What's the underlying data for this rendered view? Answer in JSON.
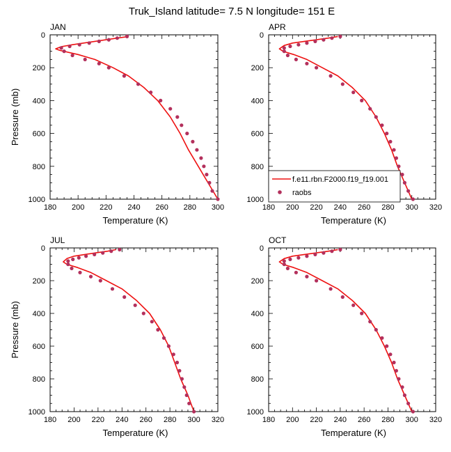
{
  "title": "Truk_Island  latitude= 7.5 N longitude= 151 E",
  "legend": {
    "model_label": "f.e11.rbn.F2000.f19_f19.001",
    "obs_label": "raobs",
    "placement": "lower-left of APR panel"
  },
  "colors": {
    "model_line": "#ee1111",
    "obs_marker": "#b3305c",
    "axes": "#000000"
  },
  "chart_data": [
    {
      "type": "line",
      "panel": "JAN",
      "label": "JAN",
      "xlabel": "Temperature (K)",
      "ylabel": "Pressure (mb)",
      "xlim": [
        180,
        300
      ],
      "ylim": [
        1000,
        0
      ],
      "xticks": [
        180,
        200,
        220,
        240,
        260,
        280,
        300
      ],
      "yticks": [
        0,
        200,
        400,
        600,
        800,
        1000
      ],
      "series": [
        {
          "name": "f.e11.rbn.F2000.f19_f19.001",
          "kind": "line",
          "points": [
            [
              236,
              10
            ],
            [
              228,
              20
            ],
            [
              220,
              30
            ],
            [
              212,
              40
            ],
            [
              204,
              50
            ],
            [
              196,
              60
            ],
            [
              188,
              72
            ],
            [
              184,
              85
            ],
            [
              187,
              95
            ],
            [
              200,
              120
            ],
            [
              212,
              150
            ],
            [
              225,
              200
            ],
            [
              236,
              250
            ],
            [
              247,
              320
            ],
            [
              257,
              400
            ],
            [
              266,
              500
            ],
            [
              273,
              600
            ],
            [
              279,
              700
            ],
            [
              286,
              800
            ],
            [
              293,
              900
            ],
            [
              300,
              1000
            ]
          ]
        },
        {
          "name": "raobs",
          "kind": "markers",
          "points": [
            [
              235,
              10
            ],
            [
              228,
              20
            ],
            [
              222,
              30
            ],
            [
              215,
              40
            ],
            [
              208,
              50
            ],
            [
              201,
              60
            ],
            [
              194,
              70
            ],
            [
              188,
              80
            ],
            [
              190,
              100
            ],
            [
              196,
              125
            ],
            [
              205,
              150
            ],
            [
              215,
              175
            ],
            [
              222,
              200
            ],
            [
              233,
              250
            ],
            [
              243,
              300
            ],
            [
              252,
              350
            ],
            [
              259,
              400
            ],
            [
              266,
              450
            ],
            [
              271,
              500
            ],
            [
              274,
              550
            ],
            [
              278,
              600
            ],
            [
              282,
              650
            ],
            [
              285,
              700
            ],
            [
              288,
              750
            ],
            [
              290,
              800
            ],
            [
              292,
              850
            ],
            [
              294,
              900
            ],
            [
              296,
              950
            ],
            [
              300,
              1000
            ]
          ]
        }
      ]
    },
    {
      "type": "line",
      "panel": "APR",
      "label": "APR",
      "xlabel": "Temperature (K)",
      "ylabel": "",
      "xlim": [
        180,
        320
      ],
      "ylim": [
        1000,
        0
      ],
      "xticks": [
        180,
        200,
        220,
        240,
        260,
        280,
        300,
        320
      ],
      "yticks": [
        0,
        200,
        400,
        600,
        800,
        1000
      ],
      "series": [
        {
          "name": "f.e11.rbn.F2000.f19_f19.001",
          "kind": "line",
          "points": [
            [
              238,
              10
            ],
            [
              230,
              20
            ],
            [
              220,
              30
            ],
            [
              210,
              40
            ],
            [
              200,
              50
            ],
            [
              193,
              65
            ],
            [
              189,
              85
            ],
            [
              192,
              100
            ],
            [
              201,
              120
            ],
            [
              212,
              150
            ],
            [
              225,
              200
            ],
            [
              238,
              250
            ],
            [
              250,
              320
            ],
            [
              261,
              400
            ],
            [
              270,
              500
            ],
            [
              277,
              600
            ],
            [
              283,
              700
            ],
            [
              288,
              800
            ],
            [
              294,
              900
            ],
            [
              300,
              1000
            ]
          ]
        },
        {
          "name": "raobs",
          "kind": "markers",
          "points": [
            [
              240,
              10
            ],
            [
              233,
              20
            ],
            [
              226,
              30
            ],
            [
              219,
              40
            ],
            [
              212,
              50
            ],
            [
              205,
              60
            ],
            [
              198,
              70
            ],
            [
              193,
              80
            ],
            [
              193,
              100
            ],
            [
              196,
              125
            ],
            [
              203,
              150
            ],
            [
              212,
              175
            ],
            [
              220,
              200
            ],
            [
              232,
              250
            ],
            [
              242,
              300
            ],
            [
              251,
              350
            ],
            [
              258,
              400
            ],
            [
              265,
              450
            ],
            [
              270,
              500
            ],
            [
              275,
              550
            ],
            [
              279,
              600
            ],
            [
              282,
              650
            ],
            [
              285,
              700
            ],
            [
              287,
              750
            ],
            [
              289,
              800
            ],
            [
              292,
              850
            ],
            [
              294,
              900
            ],
            [
              297,
              950
            ],
            [
              301,
              1000
            ]
          ]
        }
      ]
    },
    {
      "type": "line",
      "panel": "JUL",
      "label": "JUL",
      "xlabel": "Temperature (K)",
      "ylabel": "Pressure (mb)",
      "xlim": [
        180,
        320
      ],
      "ylim": [
        1000,
        0
      ],
      "xticks": [
        180,
        200,
        220,
        240,
        260,
        280,
        300,
        320
      ],
      "yticks": [
        0,
        200,
        400,
        600,
        800,
        1000
      ],
      "series": [
        {
          "name": "f.e11.rbn.F2000.f19_f19.001",
          "kind": "line",
          "points": [
            [
              235,
              10
            ],
            [
              228,
              20
            ],
            [
              218,
              30
            ],
            [
              209,
              40
            ],
            [
              200,
              50
            ],
            [
              194,
              65
            ],
            [
              191,
              85
            ],
            [
              194,
              100
            ],
            [
              203,
              120
            ],
            [
              214,
              150
            ],
            [
              227,
              200
            ],
            [
              240,
              250
            ],
            [
              252,
              320
            ],
            [
              263,
              400
            ],
            [
              272,
              500
            ],
            [
              279,
              600
            ],
            [
              284,
              700
            ],
            [
              289,
              800
            ],
            [
              295,
              900
            ],
            [
              300,
              1000
            ]
          ]
        },
        {
          "name": "raobs",
          "kind": "markers",
          "points": [
            [
              238,
              10
            ],
            [
              231,
              20
            ],
            [
              224,
              30
            ],
            [
              217,
              40
            ],
            [
              210,
              50
            ],
            [
              204,
              60
            ],
            [
              199,
              70
            ],
            [
              195,
              80
            ],
            [
              195,
              100
            ],
            [
              198,
              125
            ],
            [
              205,
              150
            ],
            [
              214,
              175
            ],
            [
              222,
              200
            ],
            [
              232,
              250
            ],
            [
              242,
              300
            ],
            [
              251,
              350
            ],
            [
              258,
              400
            ],
            [
              265,
              450
            ],
            [
              270,
              500
            ],
            [
              275,
              550
            ],
            [
              279,
              600
            ],
            [
              283,
              650
            ],
            [
              286,
              700
            ],
            [
              288,
              750
            ],
            [
              290,
              800
            ],
            [
              292,
              850
            ],
            [
              294,
              900
            ],
            [
              296,
              950
            ],
            [
              300,
              1000
            ]
          ]
        }
      ]
    },
    {
      "type": "line",
      "panel": "OCT",
      "label": "OCT",
      "xlabel": "Temperature (K)",
      "ylabel": "",
      "xlim": [
        180,
        320
      ],
      "ylim": [
        1000,
        0
      ],
      "xticks": [
        180,
        200,
        220,
        240,
        260,
        280,
        300,
        320
      ],
      "yticks": [
        0,
        200,
        400,
        600,
        800,
        1000
      ],
      "series": [
        {
          "name": "f.e11.rbn.F2000.f19_f19.001",
          "kind": "line",
          "points": [
            [
              238,
              10
            ],
            [
              230,
              20
            ],
            [
              220,
              30
            ],
            [
              210,
              40
            ],
            [
              200,
              50
            ],
            [
              193,
              65
            ],
            [
              189,
              85
            ],
            [
              192,
              100
            ],
            [
              201,
              120
            ],
            [
              212,
              150
            ],
            [
              225,
              200
            ],
            [
              238,
              250
            ],
            [
              250,
              320
            ],
            [
              261,
              400
            ],
            [
              270,
              500
            ],
            [
              277,
              600
            ],
            [
              283,
              700
            ],
            [
              288,
              800
            ],
            [
              294,
              900
            ],
            [
              300,
              1000
            ]
          ]
        },
        {
          "name": "raobs",
          "kind": "markers",
          "points": [
            [
              240,
              10
            ],
            [
              233,
              20
            ],
            [
              226,
              30
            ],
            [
              219,
              40
            ],
            [
              212,
              50
            ],
            [
              205,
              60
            ],
            [
              198,
              70
            ],
            [
              193,
              80
            ],
            [
              193,
              100
            ],
            [
              196,
              125
            ],
            [
              203,
              150
            ],
            [
              212,
              175
            ],
            [
              220,
              200
            ],
            [
              232,
              250
            ],
            [
              242,
              300
            ],
            [
              251,
              350
            ],
            [
              258,
              400
            ],
            [
              265,
              450
            ],
            [
              270,
              500
            ],
            [
              275,
              550
            ],
            [
              279,
              600
            ],
            [
              282,
              650
            ],
            [
              285,
              700
            ],
            [
              287,
              750
            ],
            [
              289,
              800
            ],
            [
              292,
              850
            ],
            [
              294,
              900
            ],
            [
              297,
              950
            ],
            [
              301,
              1000
            ]
          ]
        }
      ]
    }
  ]
}
